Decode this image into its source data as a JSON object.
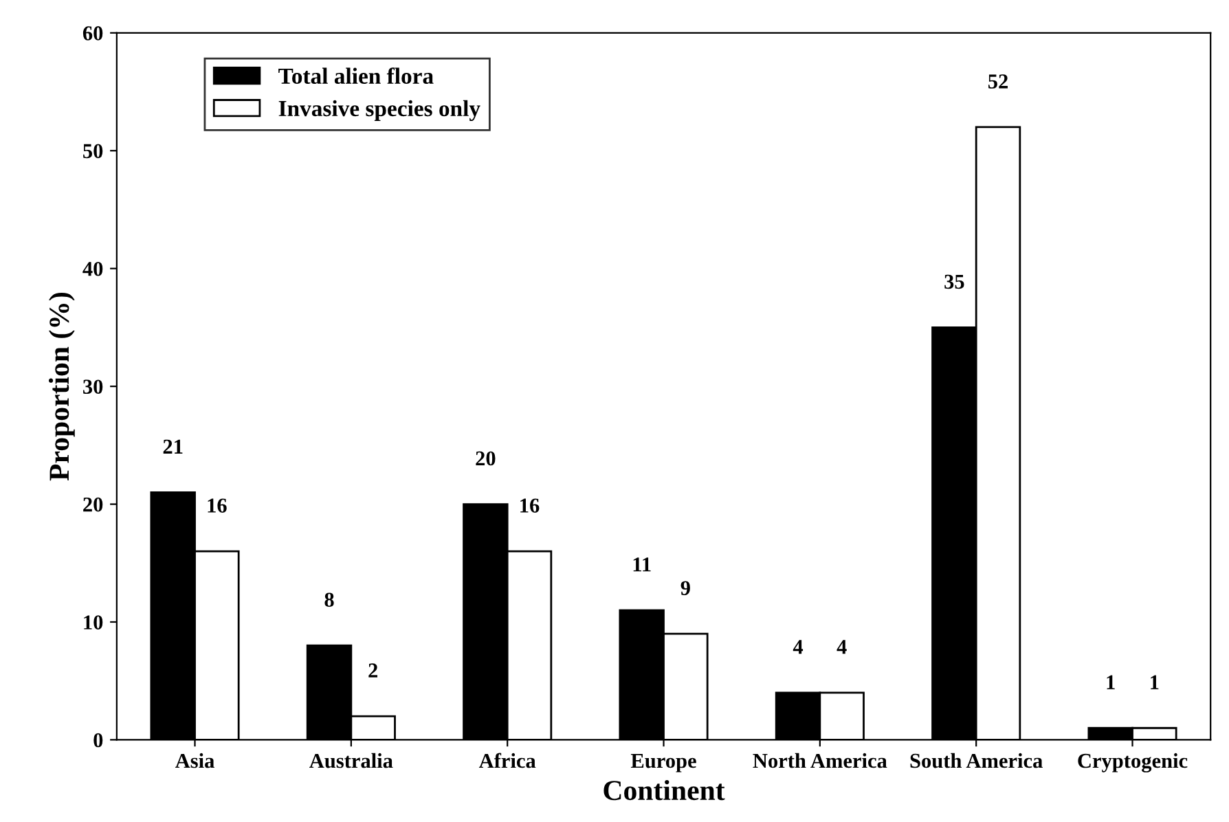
{
  "chart_data": {
    "type": "bar",
    "xlabel": "Continent",
    "ylabel": "Proportion (%)",
    "categories": [
      "Asia",
      "Australia",
      "Africa",
      "Europe",
      "North America",
      "South America",
      "Cryptogenic"
    ],
    "series": [
      {
        "name": "Total alien flora",
        "color": "#000000",
        "values": [
          21,
          8,
          20,
          11,
          4,
          35,
          1
        ]
      },
      {
        "name": "Invasive species only",
        "color": "#ffffff",
        "values": [
          16,
          2,
          16,
          9,
          4,
          52,
          1
        ]
      }
    ],
    "ylim": [
      0,
      60
    ],
    "yticks": [
      0,
      10,
      20,
      30,
      40,
      50,
      60
    ],
    "grid": false,
    "legend": "top left",
    "data_labels": true
  }
}
